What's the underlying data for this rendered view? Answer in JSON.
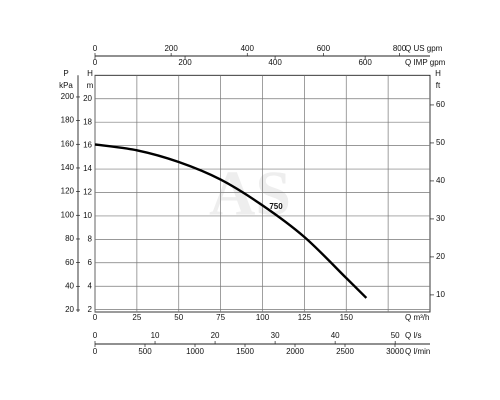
{
  "chart_data": {
    "type": "line",
    "watermark": "AS",
    "x": [
      0,
      25,
      50,
      75,
      100,
      125,
      150,
      162
    ],
    "series": [
      {
        "name": "750",
        "color": "#000000",
        "values": [
          16.1,
          15.6,
          14.6,
          13.1,
          10.9,
          8.2,
          4.7,
          3.0
        ]
      }
    ],
    "xlim": [
      0,
      200
    ],
    "xticks": [
      0,
      25,
      50,
      75,
      100,
      125,
      150
    ],
    "xgrid": [
      175
    ],
    "xlabel": "Q m³/h",
    "ylim": [
      1.8,
      22
    ],
    "yticks": [
      2,
      4,
      6,
      8,
      10,
      12,
      14,
      16,
      18,
      20
    ],
    "ylabel": [
      "H",
      "m"
    ],
    "grid": true,
    "pressure_axis": {
      "label": [
        "P",
        "kPa"
      ],
      "lim": [
        18.3,
        218.3
      ],
      "ticks": [
        20,
        40,
        60,
        80,
        100,
        120,
        140,
        160,
        180,
        200
      ]
    },
    "feet_axis": {
      "label": [
        "H",
        "ft"
      ],
      "lim": [
        5.5,
        67.8
      ],
      "ticks": [
        10,
        20,
        30,
        40,
        50,
        60
      ]
    },
    "us_gpm_axis": {
      "label": "Q US gpm",
      "lim": [
        0,
        880
      ],
      "ticks": [
        0,
        200,
        400,
        600,
        800
      ]
    },
    "imp_gpm_axis": {
      "label": "Q IMP gpm",
      "lim": [
        0,
        744
      ],
      "ticks": [
        0,
        200,
        400,
        600
      ]
    },
    "lps_axis": {
      "label": "Q l/s",
      "lim": [
        0,
        55.8
      ],
      "ticks": [
        0,
        10,
        20,
        30,
        40,
        50
      ]
    },
    "lpm_axis": {
      "label": "Q l/min",
      "lim": [
        0,
        3350
      ],
      "ticks": [
        0,
        500,
        1000,
        1500,
        2000,
        2500,
        3000
      ]
    }
  }
}
